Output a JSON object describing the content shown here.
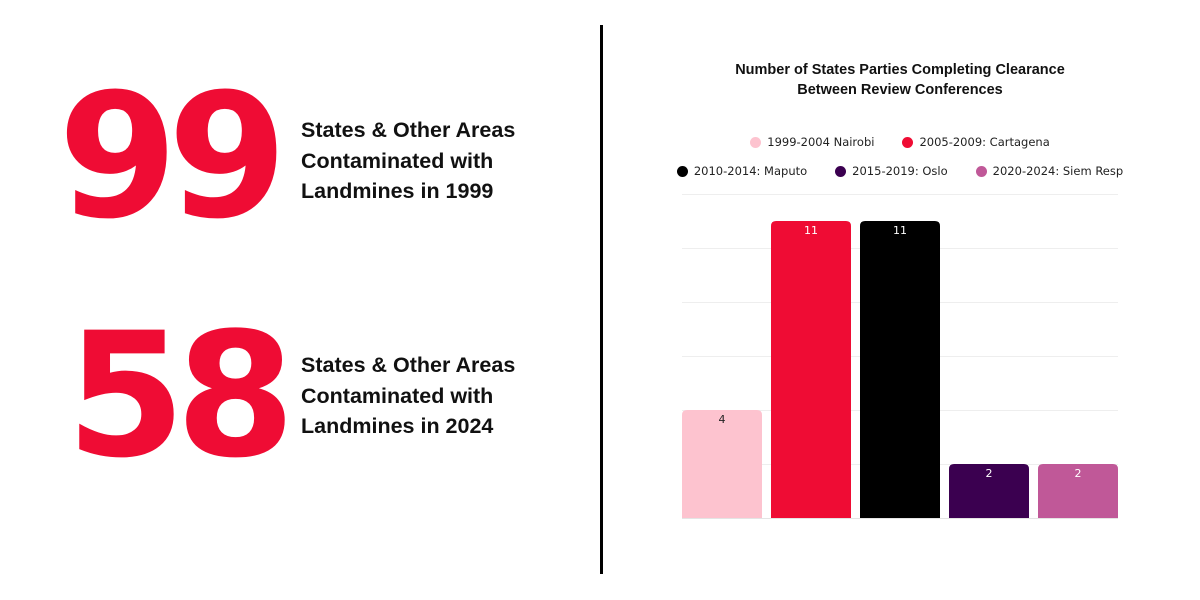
{
  "stats": [
    {
      "number": "99",
      "lines": [
        "States & Other Areas",
        "Contaminated with",
        "Landmines in 1999"
      ]
    },
    {
      "number": "58",
      "lines": [
        "States & Other Areas",
        "Contaminated with",
        "Landmines in 2024"
      ]
    }
  ],
  "colors": {
    "accent": "#ef0c34",
    "divider": "#000000",
    "gridline": "#eeeeee"
  },
  "chart_data": {
    "type": "bar",
    "title": [
      "Number of States Parties Completing Clearance",
      "Between Review Conferences"
    ],
    "categories": [
      "1999-2004 Nairobi",
      "2005-2009: Cartagena",
      "2010-2014: Maputo",
      "2015-2019: Oslo",
      "2020-2024: Siem Resp"
    ],
    "values": [
      4,
      11,
      11,
      2,
      2
    ],
    "bar_colors": [
      "#fdc3cf",
      "#ef0c34",
      "#000000",
      "#3b0050",
      "#c05898"
    ],
    "label_colors": [
      "#222222",
      "#ffffff",
      "#ffffff",
      "#ffffff",
      "#ffffff"
    ],
    "xlabel": "",
    "ylabel": "",
    "ylim": [
      0,
      12
    ],
    "grid": true,
    "grid_step": 2,
    "legend_position": "top",
    "data_labels": [
      "4",
      "11",
      "11",
      "2",
      "2"
    ]
  }
}
